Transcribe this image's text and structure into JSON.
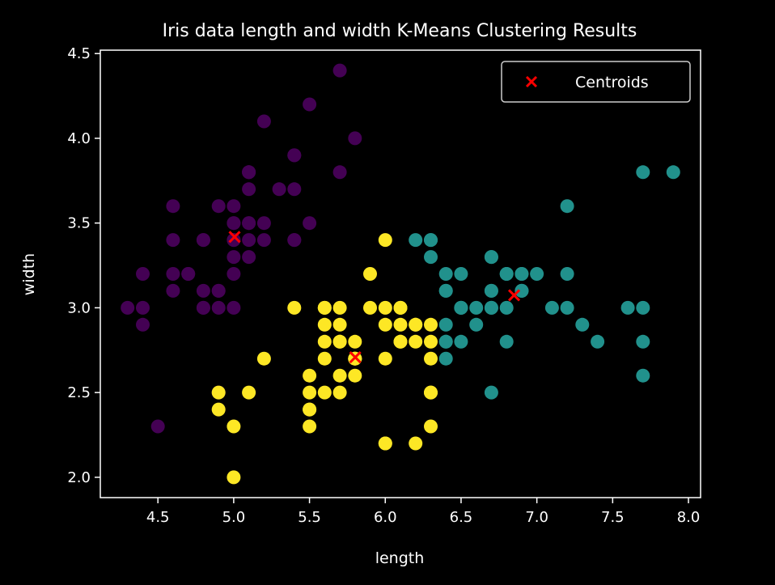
{
  "chart_data": {
    "type": "scatter",
    "title": "Iris data length and width K-Means Clustering Results",
    "xlabel": "length",
    "ylabel": "width",
    "xlim": [
      4.12,
      8.08
    ],
    "ylim": [
      1.88,
      4.52
    ],
    "xticks": [
      "4.5",
      "5.0",
      "5.5",
      "6.0",
      "6.5",
      "7.0",
      "7.5",
      "8.0"
    ],
    "yticks": [
      "2.0",
      "2.5",
      "3.0",
      "3.5",
      "4.0",
      "4.5"
    ],
    "grid": false,
    "legend_position": "top-right",
    "series": [
      {
        "color": "#440154",
        "points": [
          [
            5.1,
            3.5
          ],
          [
            4.9,
            3.0
          ],
          [
            4.7,
            3.2
          ],
          [
            4.6,
            3.1
          ],
          [
            5.0,
            3.6
          ],
          [
            5.4,
            3.9
          ],
          [
            4.6,
            3.4
          ],
          [
            5.0,
            3.4
          ],
          [
            4.4,
            2.9
          ],
          [
            4.9,
            3.1
          ],
          [
            5.4,
            3.7
          ],
          [
            4.8,
            3.4
          ],
          [
            4.8,
            3.0
          ],
          [
            4.3,
            3.0
          ],
          [
            5.8,
            4.0
          ],
          [
            5.7,
            4.4
          ],
          [
            5.4,
            3.9
          ],
          [
            5.1,
            3.5
          ],
          [
            5.7,
            3.8
          ],
          [
            5.1,
            3.8
          ],
          [
            5.4,
            3.4
          ],
          [
            5.1,
            3.7
          ],
          [
            4.6,
            3.6
          ],
          [
            5.1,
            3.3
          ],
          [
            4.8,
            3.4
          ],
          [
            5.0,
            3.0
          ],
          [
            5.0,
            3.4
          ],
          [
            5.2,
            3.5
          ],
          [
            5.2,
            3.4
          ],
          [
            4.7,
            3.2
          ],
          [
            4.8,
            3.1
          ],
          [
            5.4,
            3.4
          ],
          [
            5.2,
            4.1
          ],
          [
            5.5,
            4.2
          ],
          [
            4.9,
            3.1
          ],
          [
            5.0,
            3.2
          ],
          [
            5.5,
            3.5
          ],
          [
            4.9,
            3.6
          ],
          [
            4.4,
            3.0
          ],
          [
            5.1,
            3.4
          ],
          [
            5.0,
            3.5
          ],
          [
            4.5,
            2.3
          ],
          [
            4.4,
            3.2
          ],
          [
            5.0,
            3.5
          ],
          [
            5.1,
            3.8
          ],
          [
            4.8,
            3.0
          ],
          [
            5.1,
            3.8
          ],
          [
            4.6,
            3.2
          ],
          [
            5.3,
            3.7
          ],
          [
            5.0,
            3.3
          ],
          [
            4.9,
            2.5
          ]
        ]
      },
      {
        "color": "#21918c",
        "points": [
          [
            7.0,
            3.2
          ],
          [
            6.4,
            3.2
          ],
          [
            6.9,
            3.1
          ],
          [
            6.5,
            2.8
          ],
          [
            6.3,
            3.3
          ],
          [
            6.6,
            2.9
          ],
          [
            6.7,
            3.1
          ],
          [
            6.2,
            3.4
          ],
          [
            6.4,
            2.9
          ],
          [
            6.6,
            3.0
          ],
          [
            6.8,
            2.8
          ],
          [
            6.7,
            3.0
          ],
          [
            6.3,
            3.4
          ],
          [
            6.4,
            3.1
          ],
          [
            6.9,
            3.1
          ],
          [
            6.7,
            3.1
          ],
          [
            6.7,
            3.3
          ],
          [
            6.7,
            3.0
          ],
          [
            6.5,
            3.0
          ],
          [
            6.4,
            2.8
          ],
          [
            7.2,
            3.6
          ],
          [
            7.7,
            3.8
          ],
          [
            7.7,
            2.6
          ],
          [
            6.9,
            3.2
          ],
          [
            7.7,
            2.8
          ],
          [
            6.7,
            3.3
          ],
          [
            7.2,
            3.2
          ],
          [
            7.2,
            3.0
          ],
          [
            7.4,
            2.8
          ],
          [
            7.9,
            3.8
          ],
          [
            6.4,
            2.8
          ],
          [
            7.7,
            3.0
          ],
          [
            6.3,
            3.4
          ],
          [
            6.4,
            3.1
          ],
          [
            6.9,
            3.1
          ],
          [
            6.8,
            3.2
          ],
          [
            6.7,
            2.5
          ],
          [
            6.5,
            3.0
          ],
          [
            7.1,
            3.0
          ],
          [
            7.6,
            3.0
          ],
          [
            7.3,
            2.9
          ],
          [
            6.5,
            3.2
          ],
          [
            6.4,
            2.7
          ],
          [
            6.8,
            3.0
          ],
          [
            6.8,
            3.2
          ],
          [
            6.5,
            3.0
          ],
          [
            6.9,
            3.2
          ]
        ]
      },
      {
        "color": "#fde725",
        "points": [
          [
            5.5,
            2.3
          ],
          [
            5.7,
            2.8
          ],
          [
            4.9,
            2.4
          ],
          [
            5.2,
            2.7
          ],
          [
            5.0,
            2.0
          ],
          [
            5.9,
            3.0
          ],
          [
            6.0,
            2.2
          ],
          [
            6.1,
            2.9
          ],
          [
            5.6,
            2.9
          ],
          [
            5.6,
            3.0
          ],
          [
            5.8,
            2.7
          ],
          [
            6.2,
            2.2
          ],
          [
            5.6,
            2.5
          ],
          [
            5.9,
            3.2
          ],
          [
            6.1,
            2.8
          ],
          [
            6.3,
            2.5
          ],
          [
            6.1,
            2.8
          ],
          [
            6.0,
            2.9
          ],
          [
            5.7,
            2.6
          ],
          [
            5.5,
            2.4
          ],
          [
            5.5,
            2.4
          ],
          [
            5.8,
            2.7
          ],
          [
            6.0,
            2.7
          ],
          [
            5.4,
            3.0
          ],
          [
            6.0,
            3.4
          ],
          [
            6.3,
            2.3
          ],
          [
            5.6,
            3.0
          ],
          [
            5.5,
            2.5
          ],
          [
            5.5,
            2.6
          ],
          [
            6.1,
            3.0
          ],
          [
            5.8,
            2.6
          ],
          [
            5.0,
            2.3
          ],
          [
            5.6,
            2.7
          ],
          [
            5.7,
            3.0
          ],
          [
            5.7,
            2.9
          ],
          [
            6.2,
            2.9
          ],
          [
            5.1,
            2.5
          ],
          [
            5.7,
            2.8
          ],
          [
            5.8,
            2.8
          ],
          [
            4.9,
            2.5
          ],
          [
            5.7,
            2.5
          ],
          [
            6.0,
            3.0
          ],
          [
            6.3,
            2.7
          ],
          [
            6.2,
            2.8
          ],
          [
            6.1,
            3.0
          ],
          [
            6.3,
            2.8
          ],
          [
            6.0,
            2.2
          ],
          [
            5.8,
            2.7
          ],
          [
            6.3,
            2.5
          ],
          [
            6.3,
            2.9
          ],
          [
            5.6,
            2.8
          ],
          [
            6.2,
            2.9
          ]
        ]
      }
    ],
    "centroids": {
      "name": "Centroids",
      "color": "#ff0000",
      "marker": "x",
      "points": [
        [
          5.006,
          3.418
        ],
        [
          6.85,
          3.074
        ],
        [
          5.802,
          2.708
        ]
      ]
    }
  }
}
